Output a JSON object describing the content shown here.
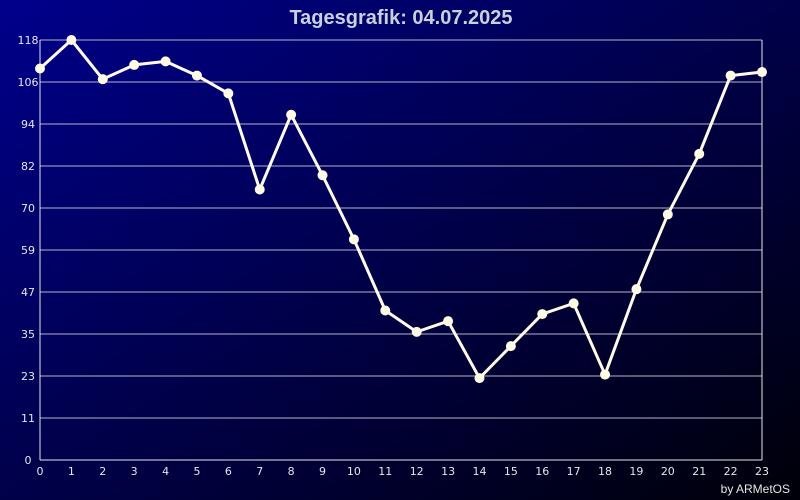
{
  "chart_data": {
    "type": "line",
    "title": "Tagesgrafik: 04.07.2025",
    "credit": "by ARMetOS",
    "x": [
      0,
      1,
      2,
      3,
      4,
      5,
      6,
      7,
      8,
      9,
      10,
      11,
      12,
      13,
      14,
      15,
      16,
      17,
      18,
      19,
      20,
      21,
      22,
      23
    ],
    "x_tick_labels": [
      "0",
      "1",
      "2",
      "3",
      "4",
      "5",
      "6",
      "7",
      "8",
      "9",
      "10",
      "11",
      "12",
      "13",
      "14",
      "15",
      "16",
      "17",
      "18",
      "19",
      "20",
      "21",
      "22",
      "23"
    ],
    "xlim": [
      0,
      23
    ],
    "y_tick_labels": [
      "0",
      "11",
      "23",
      "35",
      "47",
      "59",
      "70",
      "82",
      "94",
      "106",
      "118"
    ],
    "ylim": [
      0,
      118
    ],
    "series": [
      {
        "values": [
          110,
          118,
          107,
          111,
          112,
          108,
          103,
          76,
          97,
          80,
          62,
          42,
          36,
          39,
          23,
          32,
          41,
          44,
          24,
          48,
          69,
          86,
          108,
          109
        ]
      }
    ],
    "grid": true,
    "legend": "none",
    "colors": {
      "background_start": "#00008c",
      "background_end": "#000008",
      "line": "#fffbe6",
      "marker": "#fffbe6",
      "grid": "#b4b4c8",
      "axis": "#e6e6e6"
    }
  }
}
